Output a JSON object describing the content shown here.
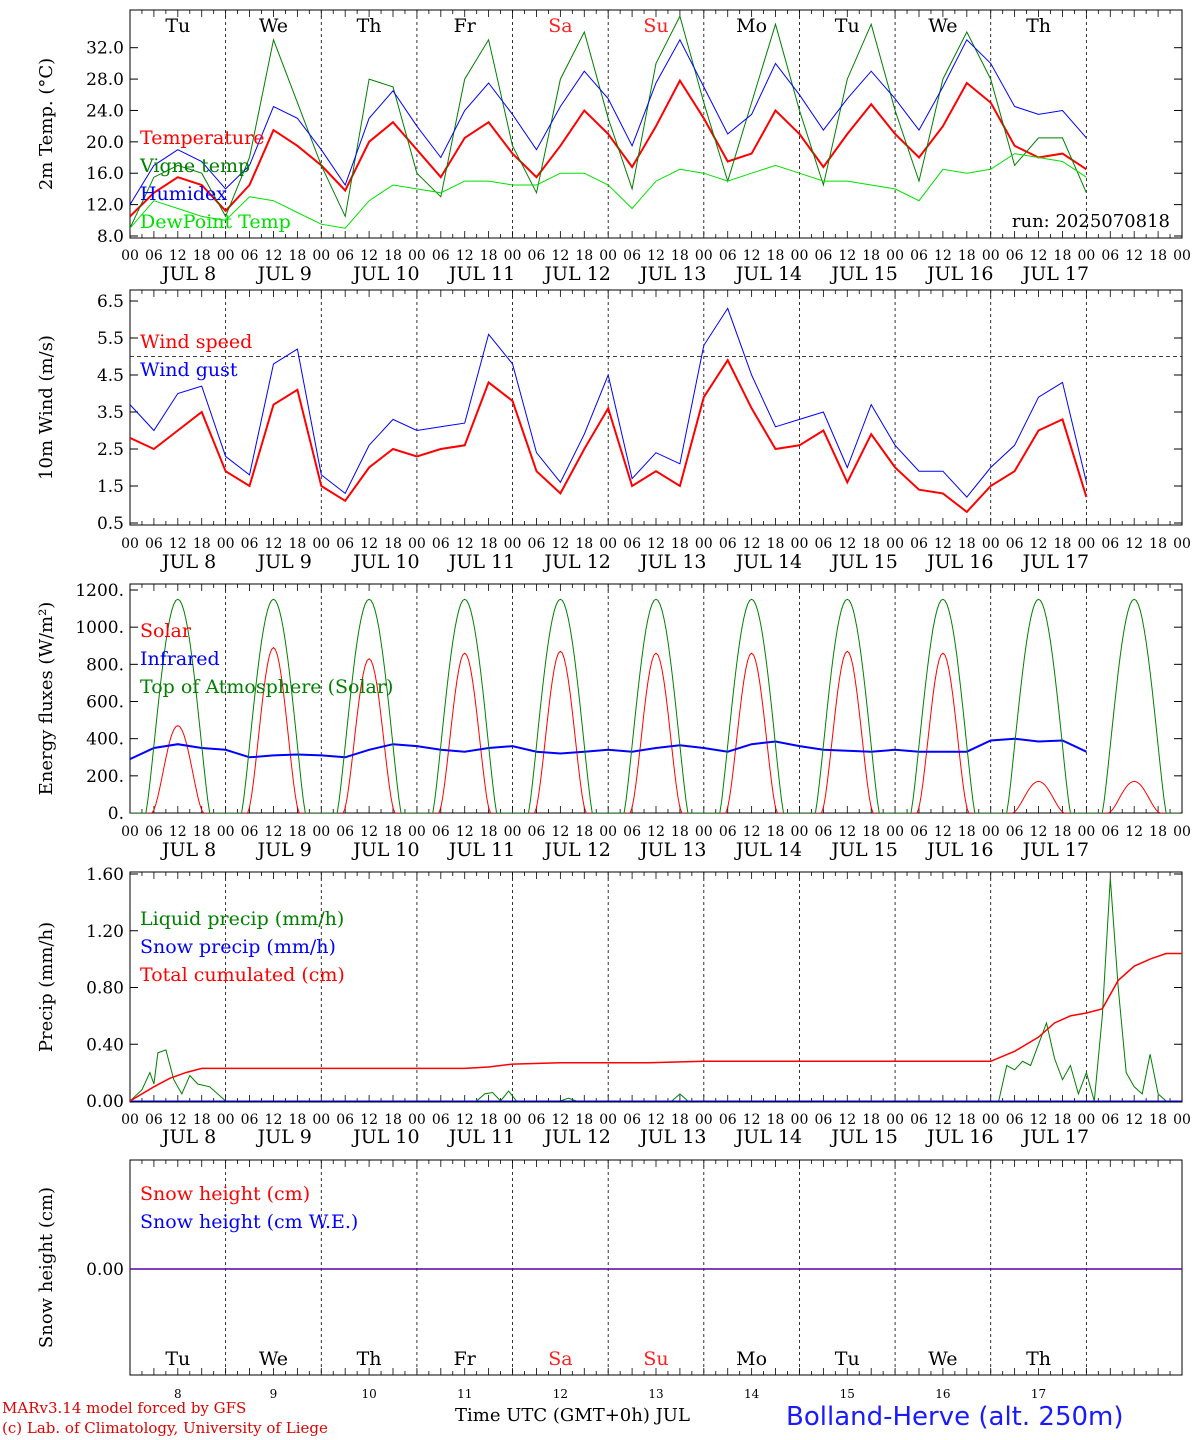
{
  "meta": {
    "run_label": "run: 2025070818",
    "model_credit": "MARv3.14 model forced by GFS",
    "lab_credit": "(c) Lab. of Climatology, University of Liege",
    "x_axis_title": "Time UTC (GMT+0h) JUL",
    "station": "Bolland-Herve (alt. 250m)"
  },
  "time_axis": {
    "hour_ticks": [
      "00",
      "06",
      "12",
      "18"
    ],
    "days": [
      "8",
      "9",
      "10",
      "11",
      "12",
      "13",
      "14",
      "15",
      "16",
      "17"
    ],
    "date_labels": [
      "JUL  8",
      "JUL  9",
      "JUL 10",
      "JUL 11",
      "JUL 12",
      "JUL 13",
      "JUL 14",
      "JUL 15",
      "JUL 16",
      "JUL 17"
    ],
    "weekdays": [
      "Tu",
      "We",
      "Th",
      "Fr",
      "Sa",
      "Su",
      "Mo",
      "Tu",
      "We",
      "Th"
    ],
    "weekend_color": "#ff2020",
    "weekday_color": "#000000"
  },
  "chart_data": [
    {
      "id": "temp",
      "type": "line",
      "ylabel": "2m Temp. (°C)",
      "ylim": [
        8,
        34
      ],
      "ticks": [
        8,
        12,
        16,
        20,
        24,
        28,
        32
      ],
      "tick_labels": [
        "8.0",
        "12.0",
        "16.0",
        "20.0",
        "24.0",
        "28.0",
        "32.0"
      ],
      "x": [
        0,
        6,
        12,
        18,
        24,
        30,
        36,
        42,
        48,
        54,
        60,
        66,
        72,
        78,
        84,
        90,
        96,
        102,
        108,
        114,
        120,
        126,
        132,
        138,
        144,
        150,
        156,
        162,
        168,
        174,
        180,
        186,
        192,
        198,
        204,
        210,
        216,
        222,
        228,
        234,
        240
      ],
      "series": [
        {
          "name": "Temperature",
          "color": "#ff0000",
          "width": 2,
          "values": [
            10.5,
            13.5,
            15.5,
            14.5,
            11.2,
            14.5,
            21.5,
            19.5,
            17.0,
            13.8,
            20.0,
            22.5,
            19.0,
            15.5,
            20.5,
            22.5,
            18.5,
            15.5,
            19.5,
            24.0,
            21.0,
            16.8,
            22.0,
            27.8,
            23.0,
            17.5,
            18.5,
            24.0,
            21.0,
            16.8,
            21.0,
            24.8,
            21.0,
            18.0,
            22.0,
            27.5,
            25.0,
            19.5,
            18.0,
            18.5,
            16.5
          ]
        },
        {
          "name": "Vigne temp",
          "color": "#007f00",
          "width": 1,
          "values": [
            9.0,
            15.5,
            17.0,
            16.0,
            10.5,
            18.0,
            33.0,
            25.0,
            17.0,
            10.5,
            28.0,
            27.0,
            16.0,
            13.0,
            28.0,
            33.0,
            19.5,
            13.5,
            28.0,
            34.0,
            23.0,
            14.0,
            30.0,
            36.0,
            25.0,
            15.0,
            25.0,
            35.0,
            24.0,
            14.5,
            28.0,
            35.0,
            24.0,
            15.0,
            28.0,
            34.0,
            28.0,
            17.0,
            20.5,
            20.5,
            13.5
          ]
        },
        {
          "name": "Humidex",
          "color": "#0000ff",
          "width": 1,
          "values": [
            12.0,
            17.0,
            19.0,
            17.5,
            14.0,
            17.0,
            24.5,
            23.0,
            19.0,
            14.5,
            23.0,
            26.5,
            22.0,
            18.0,
            24.0,
            27.5,
            23.5,
            19.0,
            24.5,
            29.0,
            25.5,
            19.5,
            27.5,
            33.0,
            27.0,
            21.0,
            23.5,
            30.0,
            26.0,
            21.5,
            25.5,
            29.0,
            25.5,
            21.5,
            27.0,
            33.0,
            30.0,
            24.5,
            23.5,
            24.0,
            20.5
          ]
        },
        {
          "name": "DewPoint Temp",
          "color": "#00e000",
          "width": 1,
          "values": [
            9.0,
            12.5,
            11.5,
            10.5,
            10.0,
            13.0,
            12.5,
            11.0,
            9.5,
            9.0,
            12.5,
            14.5,
            14.0,
            13.5,
            15.0,
            15.0,
            14.5,
            14.5,
            16.0,
            16.0,
            14.5,
            11.5,
            15.0,
            16.5,
            16.0,
            15.0,
            16.0,
            17.0,
            16.0,
            15.0,
            15.0,
            14.5,
            14.0,
            12.5,
            16.5,
            16.0,
            16.5,
            18.5,
            18.0,
            17.5,
            15.5
          ]
        }
      ]
    },
    {
      "id": "wind",
      "type": "line",
      "ylabel": "10m Wind (m/s)",
      "ylim": [
        0.5,
        6.5
      ],
      "ticks": [
        0.5,
        1.5,
        2.5,
        3.5,
        4.5,
        5.5,
        6.5
      ],
      "tick_labels": [
        "0.5",
        "1.5",
        "2.5",
        "3.5",
        "4.5",
        "5.5",
        "6.5"
      ],
      "ref_line": 5,
      "x": [
        0,
        6,
        12,
        18,
        24,
        30,
        36,
        42,
        48,
        54,
        60,
        66,
        72,
        78,
        84,
        90,
        96,
        102,
        108,
        114,
        120,
        126,
        132,
        138,
        144,
        150,
        156,
        162,
        168,
        174,
        180,
        186,
        192,
        198,
        204,
        210,
        216,
        222,
        228,
        234,
        240
      ],
      "series": [
        {
          "name": "Wind speed",
          "color": "#ff0000",
          "width": 2,
          "values": [
            2.8,
            2.5,
            3.0,
            3.5,
            1.9,
            1.5,
            3.7,
            4.1,
            1.5,
            1.1,
            2.0,
            2.5,
            2.3,
            2.5,
            2.6,
            4.3,
            3.8,
            1.9,
            1.3,
            2.5,
            3.6,
            1.5,
            1.9,
            1.5,
            3.9,
            4.9,
            3.6,
            2.5,
            2.6,
            3.0,
            1.6,
            2.9,
            2.0,
            1.4,
            1.3,
            0.8,
            1.5,
            1.9,
            3.0,
            3.3,
            1.2
          ]
        },
        {
          "name": "Wind gust",
          "color": "#0000ff",
          "width": 1,
          "values": [
            3.7,
            3.0,
            4.0,
            4.2,
            2.3,
            1.8,
            4.8,
            5.2,
            1.8,
            1.3,
            2.6,
            3.3,
            3.0,
            3.1,
            3.2,
            5.6,
            4.8,
            2.4,
            1.6,
            2.9,
            4.5,
            1.7,
            2.4,
            2.1,
            5.3,
            6.3,
            4.5,
            3.1,
            3.3,
            3.5,
            2.0,
            3.7,
            2.6,
            1.9,
            1.9,
            1.2,
            2.0,
            2.6,
            3.9,
            4.3,
            1.6
          ]
        }
      ]
    },
    {
      "id": "energy",
      "type": "line",
      "ylabel": "Energy fluxes (W/m²)",
      "ylim": [
        0,
        1200
      ],
      "ticks": [
        0,
        200,
        400,
        600,
        800,
        1000,
        1200
      ],
      "tick_labels": [
        "0.",
        "200.",
        "400.",
        "600.",
        "800.",
        "1000.",
        "1200."
      ],
      "series": [
        {
          "name": "Solar",
          "color": "#ff0000",
          "width": 1,
          "daily_peak": [
            470,
            890,
            830,
            860,
            870,
            860,
            860,
            870,
            860,
            170
          ]
        },
        {
          "name": "Infrared",
          "color": "#0000ff",
          "width": 2,
          "x": [
            0,
            6,
            12,
            18,
            24,
            30,
            36,
            42,
            48,
            54,
            60,
            66,
            72,
            78,
            84,
            90,
            96,
            102,
            108,
            114,
            120,
            126,
            132,
            138,
            144,
            150,
            156,
            162,
            168,
            174,
            180,
            186,
            192,
            198,
            204,
            210,
            216,
            222,
            228,
            234,
            240
          ],
          "values": [
            290,
            350,
            370,
            350,
            340,
            300,
            310,
            315,
            310,
            300,
            340,
            370,
            360,
            340,
            330,
            350,
            360,
            330,
            320,
            330,
            340,
            330,
            350,
            365,
            350,
            330,
            370,
            385,
            360,
            340,
            335,
            330,
            340,
            330,
            330,
            330,
            390,
            400,
            385,
            390,
            330
          ]
        },
        {
          "name": "Top of Atmosphere (Solar)",
          "color": "#008000",
          "width": 1,
          "daily_peak": [
            1150,
            1150,
            1150,
            1150,
            1150,
            1150,
            1150,
            1150,
            1150,
            1150
          ]
        }
      ]
    },
    {
      "id": "precip",
      "type": "line",
      "ylabel": "Precip (mm/h)",
      "ylim": [
        0,
        1.6
      ],
      "ticks": [
        0,
        0.4,
        0.8,
        1.2,
        1.6
      ],
      "tick_labels": [
        "0.00",
        "0.40",
        "0.80",
        "1.20",
        "1.60"
      ],
      "series": [
        {
          "name": "Liquid precip (mm/h)",
          "color": "#007f00",
          "width": 1,
          "x": [
            0,
            3,
            5,
            6,
            7,
            9,
            11,
            13,
            15,
            17,
            20,
            24,
            87,
            89,
            91,
            93,
            95,
            97,
            108,
            110,
            112,
            136,
            138,
            140,
            218,
            220,
            222,
            224,
            226,
            228,
            230,
            232,
            234,
            236,
            238,
            240,
            242,
            244,
            246,
            248,
            250,
            252,
            254,
            256,
            258,
            260,
            264
          ],
          "values": [
            0,
            0.08,
            0.2,
            0.12,
            0.34,
            0.36,
            0.15,
            0.05,
            0.18,
            0.12,
            0.1,
            0,
            0,
            0.05,
            0.06,
            0,
            0.07,
            0,
            0,
            0.02,
            0,
            0,
            0.05,
            0,
            0,
            0.25,
            0.22,
            0.28,
            0.25,
            0.4,
            0.55,
            0.3,
            0.15,
            0.25,
            0.05,
            0.2,
            0,
            0.6,
            1.57,
            0.8,
            0.2,
            0.1,
            0.05,
            0.33,
            0.05,
            0,
            0
          ]
        },
        {
          "name": "Snow precip (mm/h)",
          "color": "#0000ff",
          "width": 1,
          "x": [
            0,
            264
          ],
          "values": [
            0,
            0
          ]
        },
        {
          "name": "Total cumulated (cm)",
          "color": "#ff0000",
          "width": 1.5,
          "x": [
            0,
            6,
            10,
            14,
            18,
            24,
            84,
            90,
            96,
            108,
            130,
            144,
            168,
            190,
            216,
            222,
            228,
            232,
            236,
            240,
            244,
            248,
            252,
            256,
            260,
            264
          ],
          "values": [
            0,
            0.1,
            0.16,
            0.2,
            0.23,
            0.23,
            0.23,
            0.24,
            0.26,
            0.27,
            0.27,
            0.28,
            0.28,
            0.28,
            0.28,
            0.35,
            0.45,
            0.55,
            0.6,
            0.62,
            0.65,
            0.85,
            0.95,
            1.0,
            1.04,
            1.04
          ]
        }
      ]
    },
    {
      "id": "snow",
      "type": "line",
      "ylabel": "Snow height (cm)",
      "ylim": [
        -1,
        1
      ],
      "ticks": [
        0
      ],
      "tick_labels": [
        "0.00"
      ],
      "series": [
        {
          "name": "Snow height (cm)",
          "color": "#ff0000",
          "width": 1.5,
          "x": [
            0,
            264
          ],
          "values": [
            0,
            0
          ]
        },
        {
          "name": "Snow height (cm W.E.)",
          "color": "#0000ff",
          "width": 1,
          "x": [
            0,
            264
          ],
          "values": [
            0,
            0
          ]
        }
      ]
    }
  ]
}
